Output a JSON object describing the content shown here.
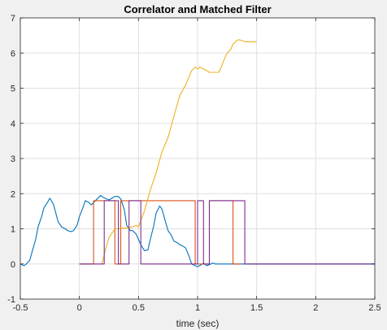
{
  "chart_data": {
    "type": "line",
    "title": "Correlator and Matched Filter",
    "xlabel": "time (sec)",
    "ylabel": "",
    "xlim": [
      -0.5,
      2.5
    ],
    "ylim": [
      -1,
      7
    ],
    "xticks": [
      -0.5,
      0,
      0.5,
      1,
      1.5,
      2,
      2.5
    ],
    "xtick_labels": [
      "-0.5",
      "0",
      "0.5",
      "1",
      "1.5",
      "2",
      "2.5"
    ],
    "yticks": [
      -1,
      0,
      1,
      2,
      3,
      4,
      5,
      6,
      7
    ],
    "ytick_labels": [
      "-1",
      "0",
      "1",
      "2",
      "3",
      "4",
      "5",
      "6",
      "7"
    ],
    "grid": true,
    "legend": "none",
    "series": [
      {
        "color": "#0072BD",
        "x": [
          -0.5,
          -0.47,
          -0.45,
          -0.42,
          -0.4,
          -0.37,
          -0.35,
          -0.32,
          -0.3,
          -0.27,
          -0.25,
          -0.22,
          -0.2,
          -0.18,
          -0.15,
          -0.12,
          -0.1,
          -0.07,
          -0.05,
          -0.02,
          0,
          0.03,
          0.05,
          0.08,
          0.1,
          0.12,
          0.15,
          0.18,
          0.2,
          0.23,
          0.25,
          0.28,
          0.3,
          0.33,
          0.35,
          0.38,
          0.4,
          0.43,
          0.45,
          0.48,
          0.5,
          0.52,
          0.55,
          0.58,
          0.6,
          0.63,
          0.65,
          0.68,
          0.7,
          0.72,
          0.75,
          0.78,
          0.8,
          0.83,
          0.85,
          0.88,
          0.9,
          0.93,
          0.95,
          0.98,
          1.0,
          1.03,
          1.05,
          1.08,
          1.1,
          1.13,
          1.15,
          1.2,
          1.3,
          1.5,
          2.0,
          2.5
        ],
        "y": [
          0,
          -0.05,
          0.0,
          0.1,
          0.35,
          0.7,
          1.05,
          1.35,
          1.6,
          1.75,
          1.87,
          1.7,
          1.45,
          1.2,
          1.05,
          1.0,
          0.95,
          0.92,
          0.95,
          1.1,
          1.35,
          1.6,
          1.8,
          1.75,
          1.68,
          1.75,
          1.85,
          1.95,
          1.9,
          1.85,
          1.82,
          1.88,
          1.92,
          1.92,
          1.85,
          1.55,
          1.1,
          0.95,
          0.95,
          0.85,
          0.7,
          0.55,
          0.38,
          0.4,
          0.7,
          1.1,
          1.45,
          1.65,
          1.55,
          1.3,
          0.95,
          0.8,
          0.65,
          0.6,
          0.55,
          0.5,
          0.45,
          0.2,
          0.0,
          -0.05,
          -0.08,
          -0.02,
          0.02,
          -0.05,
          -0.02,
          0.03,
          0.0,
          0.0,
          0.0,
          0.0,
          0.0,
          0.0
        ]
      },
      {
        "color": "#D95319",
        "x": [
          0,
          0.1,
          0.12,
          0.12,
          0.2,
          0.2,
          0.3,
          0.3,
          0.35,
          0.35,
          0.37,
          0.5,
          0.5,
          0.98,
          0.98,
          1.1,
          1.1,
          1.13,
          1.13,
          1.3,
          1.3,
          1.33,
          1.33,
          1.37
        ],
        "y": [
          0,
          0,
          0,
          1.8,
          1.8,
          1.8,
          1.8,
          0,
          0,
          1.8,
          1.8,
          1.8,
          1.8,
          1.8,
          0,
          0,
          1.8,
          1.8,
          1.8,
          1.8,
          0,
          0,
          0,
          0
        ]
      },
      {
        "color": "#EDB120",
        "x": [
          0.19,
          0.22,
          0.25,
          0.28,
          0.3,
          0.33,
          0.36,
          0.4,
          0.45,
          0.48,
          0.5,
          0.55,
          0.6,
          0.65,
          0.7,
          0.75,
          0.8,
          0.85,
          0.9,
          0.95,
          0.98,
          1.0,
          1.02,
          1.05,
          1.08,
          1.1,
          1.15,
          1.18,
          1.2,
          1.23,
          1.25,
          1.28,
          1.3,
          1.33,
          1.35,
          1.38,
          1.4,
          1.45,
          1.5
        ],
        "y": [
          0,
          0.4,
          0.75,
          0.9,
          1.0,
          1.0,
          1.02,
          1.02,
          1.05,
          1.1,
          1.05,
          1.5,
          2.1,
          2.6,
          3.2,
          3.6,
          4.2,
          4.8,
          5.1,
          5.5,
          5.6,
          5.55,
          5.6,
          5.55,
          5.5,
          5.45,
          5.45,
          5.45,
          5.6,
          5.85,
          6.0,
          6.1,
          6.25,
          6.35,
          6.38,
          6.35,
          6.32,
          6.32,
          6.32
        ]
      },
      {
        "color": "#7E2F8E",
        "x": [
          0,
          0.19,
          0.21,
          0.21,
          0.29,
          0.29,
          0.33,
          0.33,
          0.42,
          0.42,
          0.48,
          0.48,
          0.52,
          0.52,
          1.0,
          1.0,
          1.05,
          1.05,
          1.1,
          1.1,
          1.2,
          1.2,
          1.4,
          1.4,
          2.5
        ],
        "y": [
          0,
          0,
          0,
          1.8,
          1.8,
          1.8,
          1.8,
          0,
          0,
          1.8,
          1.8,
          1.8,
          1.8,
          0,
          0,
          1.8,
          1.8,
          0,
          0,
          1.8,
          1.8,
          1.8,
          1.8,
          0,
          0
        ]
      }
    ]
  }
}
